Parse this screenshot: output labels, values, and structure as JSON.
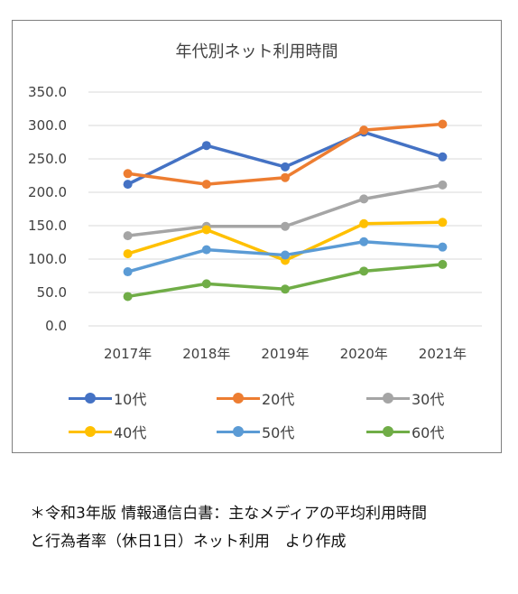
{
  "chart_data": {
    "type": "line",
    "title": "年代別ネット利用時間",
    "categories": [
      "2017年",
      "2018年",
      "2019年",
      "2020年",
      "2021年"
    ],
    "ylim": [
      0,
      350
    ],
    "yticks": [
      "0.0",
      "50.0",
      "100.0",
      "150.0",
      "200.0",
      "250.0",
      "300.0",
      "350.0"
    ],
    "grid": true,
    "legend_position": "bottom",
    "series": [
      {
        "name": "10代",
        "color": "#4472c4",
        "values": [
          212,
          270,
          238,
          290,
          253
        ]
      },
      {
        "name": "20代",
        "color": "#ed7d31",
        "values": [
          228,
          212,
          222,
          293,
          302
        ]
      },
      {
        "name": "30代",
        "color": "#a5a5a5",
        "values": [
          135,
          149,
          149,
          190,
          211
        ]
      },
      {
        "name": "40代",
        "color": "#ffc000",
        "values": [
          108,
          144,
          98,
          153,
          155
        ]
      },
      {
        "name": "50代",
        "color": "#5b9bd5",
        "values": [
          81,
          114,
          106,
          126,
          118
        ]
      },
      {
        "name": "60代",
        "color": "#70ad47",
        "values": [
          44,
          63,
          55,
          82,
          92
        ]
      }
    ]
  },
  "caption": {
    "line1": "＊令和3年版 情報通信白書：主なメディアの平均利用時間",
    "line2": "と行為者率（休日1日）ネット利用　より作成"
  }
}
